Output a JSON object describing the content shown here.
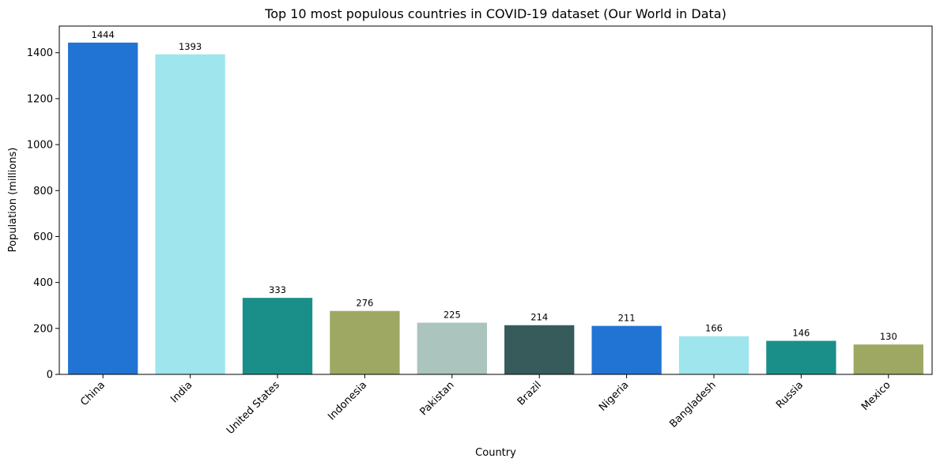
{
  "chart_data": {
    "type": "bar",
    "title": "Top 10 most populous countries in COVID-19 dataset (Our World in Data)",
    "xlabel": "Country",
    "ylabel": "Population (millions)",
    "categories": [
      "China",
      "India",
      "United States",
      "Indonesia",
      "Pakistan",
      "Brazil",
      "Nigeria",
      "Bangladesh",
      "Russia",
      "Mexico"
    ],
    "values": [
      1444,
      1393,
      333,
      276,
      225,
      214,
      211,
      166,
      146,
      130
    ],
    "data_labels": [
      "1444",
      "1393",
      "333",
      "276",
      "225",
      "214",
      "211",
      "166",
      "146",
      "130"
    ],
    "colors": [
      "#2174d4",
      "#9ee5ed",
      "#1a8f89",
      "#9ea862",
      "#abc4bd",
      "#375a5b",
      "#2174d4",
      "#9ee5ed",
      "#1a8f89",
      "#9ea862"
    ],
    "yticks": [
      0,
      200,
      400,
      600,
      800,
      1000,
      1200,
      1400
    ],
    "ylim": [
      0,
      1516
    ],
    "grid": false,
    "legend": "none"
  }
}
